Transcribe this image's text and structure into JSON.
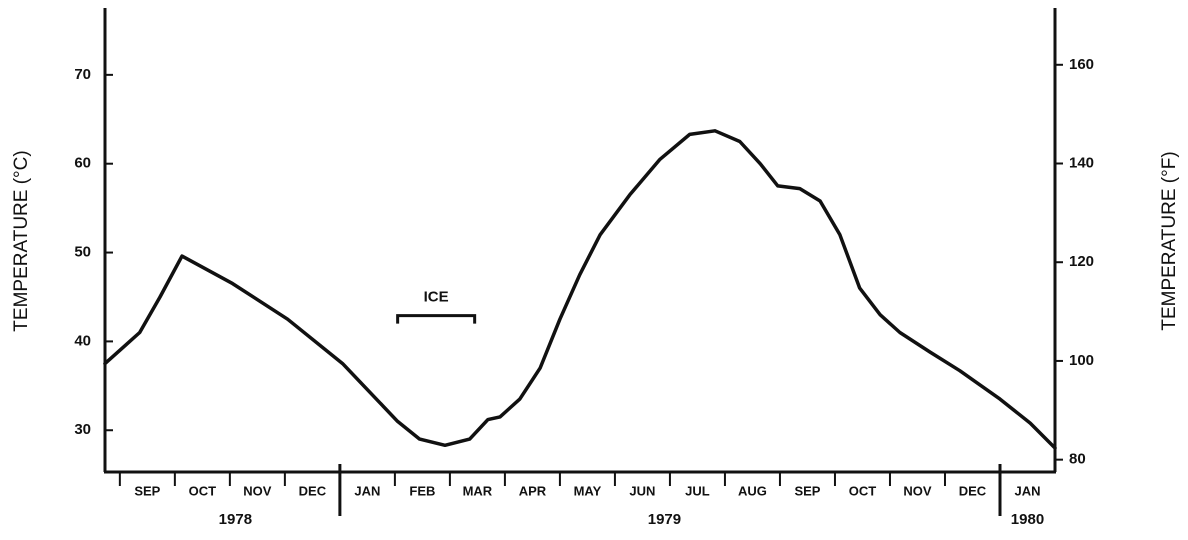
{
  "chart_data": {
    "type": "line",
    "y_axis_label": "TEMPERATURE (°C)",
    "y2_axis_label": "TEMPERATURE (°F)",
    "categories": [
      "SEP",
      "OCT",
      "NOV",
      "DEC",
      "JAN",
      "FEB",
      "MAR",
      "APR",
      "MAY",
      "JUN",
      "JUL",
      "AUG",
      "SEP",
      "OCT",
      "NOV",
      "DEC",
      "JAN"
    ],
    "years": [
      {
        "label": "1978",
        "x": 2.1
      },
      {
        "label": "1979",
        "x": 9.9
      },
      {
        "label": "1980",
        "x": 16.5
      }
    ],
    "year_breaks": [
      4,
      16
    ],
    "x": [
      -0.27,
      0.36,
      0.73,
      1.13,
      2.05,
      3.05,
      4.05,
      5.05,
      5.45,
      5.91,
      6.36,
      6.69,
      6.91,
      7.27,
      7.64,
      8,
      8.36,
      8.73,
      9.27,
      9.82,
      10.36,
      10.82,
      11.27,
      11.64,
      11.96,
      12.36,
      12.73,
      13.09,
      13.45,
      13.82,
      14.18,
      14.73,
      15.27,
      16,
      16.55,
      17
    ],
    "series": [
      {
        "color": "#111111",
        "values": [
          37.5,
          41,
          45,
          49.6,
          46.5,
          42.5,
          37.5,
          31,
          29,
          28.3,
          29,
          31.2,
          31.5,
          33.5,
          37,
          42.5,
          47.5,
          52,
          56.5,
          60.5,
          63.3,
          63.7,
          62.5,
          60,
          57.5,
          57.2,
          55.8,
          52,
          46,
          43,
          41,
          38.8,
          36.7,
          33.5,
          30.8,
          28
        ]
      }
    ],
    "annotations": [
      {
        "text": "ICE",
        "x": [
          5.05,
          6.45
        ],
        "y": 42.9
      }
    ],
    "xlim": [
      -0.27,
      17
    ],
    "ylim": [
      25.3,
      77.3
    ],
    "yticks": [
      30,
      40,
      50,
      60,
      70
    ],
    "y2lim": [
      77.5,
      171.1
    ],
    "y2ticks": [
      80,
      100,
      120,
      140,
      160
    ]
  }
}
